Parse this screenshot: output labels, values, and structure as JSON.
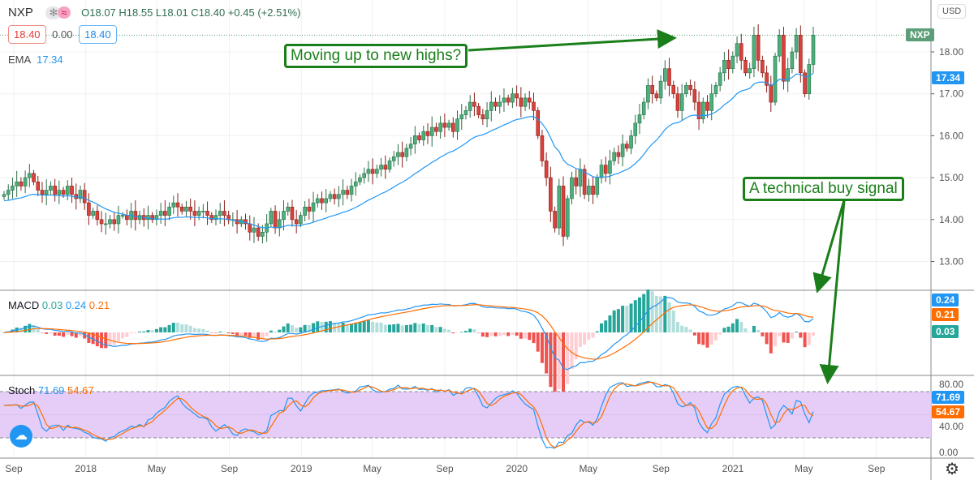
{
  "header": {
    "symbol": "NXP",
    "ohlc_text": "O18.07 H18.55 L18.01 C18.40 +0.45 (+2.51%)",
    "box_red": "18.40",
    "mid_value": "0.00",
    "box_blue": "18.40",
    "ema_label": "EMA",
    "ema_value": "17.34",
    "currency": "USD",
    "symbol_tag": "NXP",
    "icons": [
      "asterisk-icon",
      "wave-icon",
      "gear-icon"
    ]
  },
  "macd_legend": {
    "label": "MACD",
    "hist": "0.03",
    "macd": "0.24",
    "signal": "0.21"
  },
  "stoch_legend": {
    "label": "Stoch",
    "k": "71.69",
    "d": "54.67"
  },
  "annotations": {
    "highs": "Moving up to new highs?",
    "buy": "A technical buy signal"
  },
  "colors": {
    "up": "#4caf7d",
    "down": "#d9423c",
    "ema": "#2196f3",
    "macd": "#2196f3",
    "signal": "#ff6d00",
    "stoch_band": "#e6cdf7",
    "annotation": "#1a7f1a"
  },
  "chart_data": [
    {
      "type": "candlestick",
      "frequency": "weekly",
      "start": "2017-08-14",
      "closes": [
        14.6,
        14.7,
        14.8,
        14.9,
        14.8,
        15.0,
        15.1,
        14.9,
        14.7,
        14.6,
        14.7,
        14.8,
        14.6,
        14.7,
        14.6,
        14.8,
        14.6,
        14.5,
        14.7,
        14.4,
        14.1,
        14.2,
        14.0,
        13.9,
        13.9,
        14.0,
        13.9,
        14.1,
        14.1,
        14.0,
        14.2,
        14.0,
        14.1,
        14.0,
        14.1,
        14.0,
        14.1,
        14.2,
        14.1,
        14.3,
        14.4,
        14.3,
        14.2,
        14.3,
        14.2,
        14.1,
        14.2,
        14.2,
        14.1,
        14.0,
        14.1,
        14.2,
        14.1,
        14.0,
        14.0,
        13.9,
        14.0,
        13.9,
        13.7,
        13.8,
        13.6,
        13.7,
        13.9,
        14.2,
        13.8,
        14.0,
        14.2,
        14.3,
        14.0,
        13.9,
        14.1,
        14.3,
        14.2,
        14.4,
        14.5,
        14.4,
        14.5,
        14.6,
        14.5,
        14.6,
        14.7,
        14.6,
        14.8,
        14.9,
        15.0,
        15.1,
        15.2,
        15.1,
        15.2,
        15.3,
        15.2,
        15.4,
        15.5,
        15.6,
        15.5,
        15.7,
        15.8,
        16.0,
        15.9,
        16.1,
        16.0,
        16.2,
        16.1,
        16.3,
        16.2,
        16.3,
        16.1,
        16.4,
        16.5,
        16.6,
        16.8,
        16.7,
        16.5,
        16.4,
        16.6,
        16.8,
        16.7,
        16.8,
        16.9,
        16.8,
        17.0,
        16.9,
        16.7,
        16.9,
        16.8,
        16.6,
        16.0,
        15.4,
        15.0,
        14.2,
        13.8,
        14.8,
        13.6,
        14.5,
        15.0,
        14.8,
        15.2,
        14.6,
        14.8,
        14.6,
        15.0,
        15.3,
        15.1,
        15.4,
        15.6,
        15.5,
        15.8,
        15.7,
        16.0,
        16.3,
        16.5,
        16.8,
        17.2,
        17.0,
        16.9,
        17.3,
        17.6,
        17.2,
        17.0,
        16.6,
        17.0,
        17.2,
        17.1,
        16.8,
        16.4,
        16.8,
        16.6,
        17.0,
        17.2,
        17.5,
        17.8,
        17.6,
        17.9,
        18.2,
        17.8,
        17.5,
        17.6,
        18.4,
        17.8,
        17.5,
        17.2,
        16.8,
        17.9,
        18.4,
        17.3,
        17.6,
        18.0,
        18.4,
        17.5,
        17.0,
        17.7,
        18.4
      ],
      "overlay": "EMA",
      "y_ticks": [
        "18.00",
        "17.00",
        "16.00",
        "15.00",
        "14.00",
        "13.00"
      ],
      "ylim": [
        12.4,
        19.0
      ]
    },
    {
      "type": "line+bar",
      "name": "MACD",
      "series": [
        "MACD",
        "Signal",
        "Histogram"
      ],
      "last": {
        "macd": 0.24,
        "signal": 0.21,
        "hist": 0.03
      }
    },
    {
      "type": "line",
      "name": "Stoch",
      "y_ticks": [
        "80.00",
        "40.00",
        "0.00"
      ],
      "band": [
        20,
        80
      ],
      "ylim": [
        0,
        100
      ],
      "last": {
        "k": 71.69,
        "d": 54.67
      }
    },
    {
      "x_ticks": [
        {
          "label": "Sep",
          "date": "2017-09-01"
        },
        {
          "label": "2018",
          "date": "2018-01-01"
        },
        {
          "label": "May",
          "date": "2018-05-01"
        },
        {
          "label": "Sep",
          "date": "2018-09-01"
        },
        {
          "label": "2019",
          "date": "2019-01-01"
        },
        {
          "label": "May",
          "date": "2019-05-01"
        },
        {
          "label": "Sep",
          "date": "2019-09-01"
        },
        {
          "label": "2020",
          "date": "2020-01-01"
        },
        {
          "label": "May",
          "date": "2020-05-01"
        },
        {
          "label": "Sep",
          "date": "2020-09-01"
        },
        {
          "label": "2021",
          "date": "2021-01-01"
        },
        {
          "label": "May",
          "date": "2021-05-01"
        },
        {
          "label": "Sep",
          "date": "2021-09-01"
        }
      ]
    }
  ]
}
